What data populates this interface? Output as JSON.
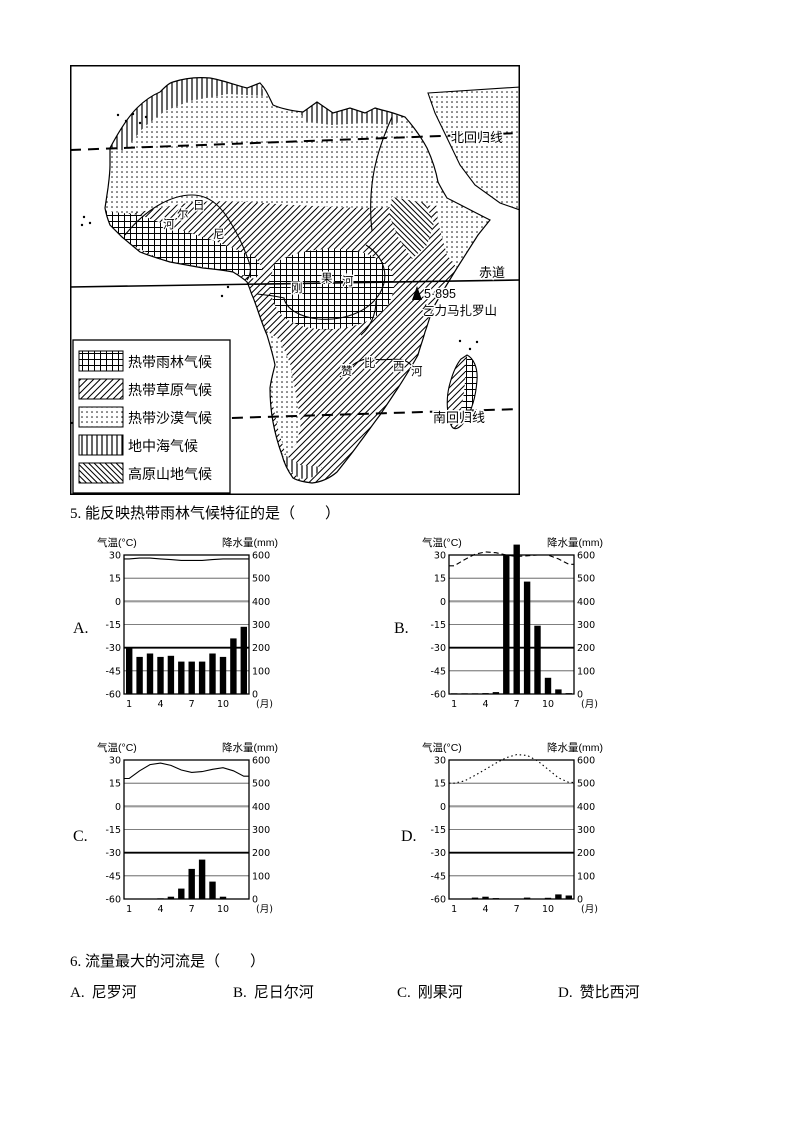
{
  "colors": {
    "ink": "#000000",
    "paper": "#ffffff"
  },
  "map": {
    "labels": {
      "tropic_of_cancer": "北回归线",
      "equator": "赤道",
      "tropic_of_capricorn": "南回归线"
    },
    "kilimanjaro": {
      "elevation": "5·895",
      "name": "乞力马扎罗山"
    },
    "rivers": {
      "niger": {
        "name": "尼日尔河",
        "chars": [
          "河",
          "尔",
          "日",
          "尼"
        ]
      },
      "congo": {
        "name": "刚果河",
        "chars": [
          "刚",
          "果",
          "河"
        ]
      },
      "zambezi": {
        "name": "赞比西河",
        "chars": [
          "赞",
          "比",
          "西",
          "河"
        ]
      }
    },
    "legend": {
      "items": [
        {
          "label": "热带雨林气候",
          "pattern": "grid"
        },
        {
          "label": "热带草原气候",
          "pattern": "diagonal"
        },
        {
          "label": "热带沙漠气候",
          "pattern": "dots"
        },
        {
          "label": "地中海气候",
          "pattern": "vertical-lines"
        },
        {
          "label": "高原山地气候",
          "pattern": "back-diagonal"
        }
      ]
    }
  },
  "question5": {
    "number": "5.",
    "text": "能反映热带雨林气候特征的是（　　）",
    "options": [
      {
        "label": "A."
      },
      {
        "label": "B."
      },
      {
        "label": "C."
      },
      {
        "label": "D."
      }
    ]
  },
  "chart_data": [
    {
      "id": "A",
      "type": "bar+line (climograph)",
      "title_left": "气温(°C)",
      "title_right": "降水量(mm)",
      "months": [
        1,
        2,
        3,
        4,
        5,
        6,
        7,
        8,
        9,
        10,
        11,
        12
      ],
      "temperature_c": [
        27.5,
        28,
        28,
        27.5,
        27,
        26.5,
        26.5,
        26.5,
        27,
        27.5,
        27.5,
        27.5
      ],
      "precipitation_mm": [
        200,
        160,
        175,
        160,
        165,
        140,
        140,
        140,
        175,
        160,
        240,
        290
      ],
      "temp_axis": {
        "min": -60,
        "max": 30,
        "step": 15
      },
      "precip_axis": {
        "min": 0,
        "max": 600,
        "step": 100
      },
      "x_ticks": [
        1,
        4,
        7,
        10
      ],
      "x_unit": "(月)",
      "curve_style": "solid"
    },
    {
      "id": "B",
      "type": "bar+line (climograph)",
      "title_left": "气温(°C)",
      "title_right": "降水量(mm)",
      "months": [
        1,
        2,
        3,
        4,
        5,
        6,
        7,
        8,
        9,
        10,
        11,
        12
      ],
      "temperature_c": [
        23,
        27,
        30.5,
        32,
        31.5,
        30,
        29,
        29.5,
        30,
        30,
        27.5,
        24
      ],
      "precipitation_mm": [
        3,
        3,
        3,
        4,
        8,
        600,
        645,
        485,
        295,
        70,
        20,
        4
      ],
      "temp_axis": {
        "min": -60,
        "max": 30,
        "step": 15
      },
      "precip_axis": {
        "min": 0,
        "max": 600,
        "step": 100
      },
      "x_ticks": [
        1,
        4,
        7,
        10
      ],
      "x_unit": "(月)",
      "curve_style": "dashed"
    },
    {
      "id": "C",
      "type": "bar+line (climograph)",
      "title_left": "气温(°C)",
      "title_right": "降水量(mm)",
      "months": [
        1,
        2,
        3,
        4,
        5,
        6,
        7,
        8,
        9,
        10,
        11,
        12
      ],
      "temperature_c": [
        18,
        23,
        27,
        28,
        26.5,
        23.5,
        22,
        22.5,
        24,
        25,
        23,
        19.5
      ],
      "precipitation_mm": [
        2,
        2,
        2,
        3,
        10,
        45,
        130,
        170,
        75,
        10,
        2,
        2
      ],
      "temp_axis": {
        "min": -60,
        "max": 30,
        "step": 15
      },
      "precip_axis": {
        "min": 0,
        "max": 600,
        "step": 100
      },
      "x_ticks": [
        1,
        4,
        7,
        10
      ],
      "x_unit": "(月)",
      "curve_style": "solid"
    },
    {
      "id": "D",
      "type": "bar+line (climograph)",
      "title_left": "气温(°C)",
      "title_right": "降水量(mm)",
      "months": [
        1,
        2,
        3,
        4,
        5,
        6,
        7,
        8,
        9,
        10,
        11,
        12
      ],
      "temperature_c": [
        15,
        16.5,
        20,
        24,
        28,
        31.5,
        33.5,
        33,
        29.5,
        24,
        18.5,
        15.5
      ],
      "precipitation_mm": [
        2,
        2,
        6,
        10,
        4,
        0,
        2,
        6,
        0,
        5,
        20,
        15
      ],
      "temp_axis": {
        "min": -60,
        "max": 30,
        "step": 15
      },
      "precip_axis": {
        "min": 0,
        "max": 600,
        "step": 100
      },
      "x_ticks": [
        1,
        4,
        7,
        10
      ],
      "x_unit": "(月)",
      "curve_style": "dotted"
    }
  ],
  "question6": {
    "number": "6.",
    "text": "流量最大的河流是（　　）",
    "options": [
      {
        "label": "A.",
        "text": "尼罗河"
      },
      {
        "label": "B.",
        "text": "尼日尔河"
      },
      {
        "label": "C.",
        "text": "刚果河"
      },
      {
        "label": "D.",
        "text": "赞比西河"
      }
    ]
  }
}
